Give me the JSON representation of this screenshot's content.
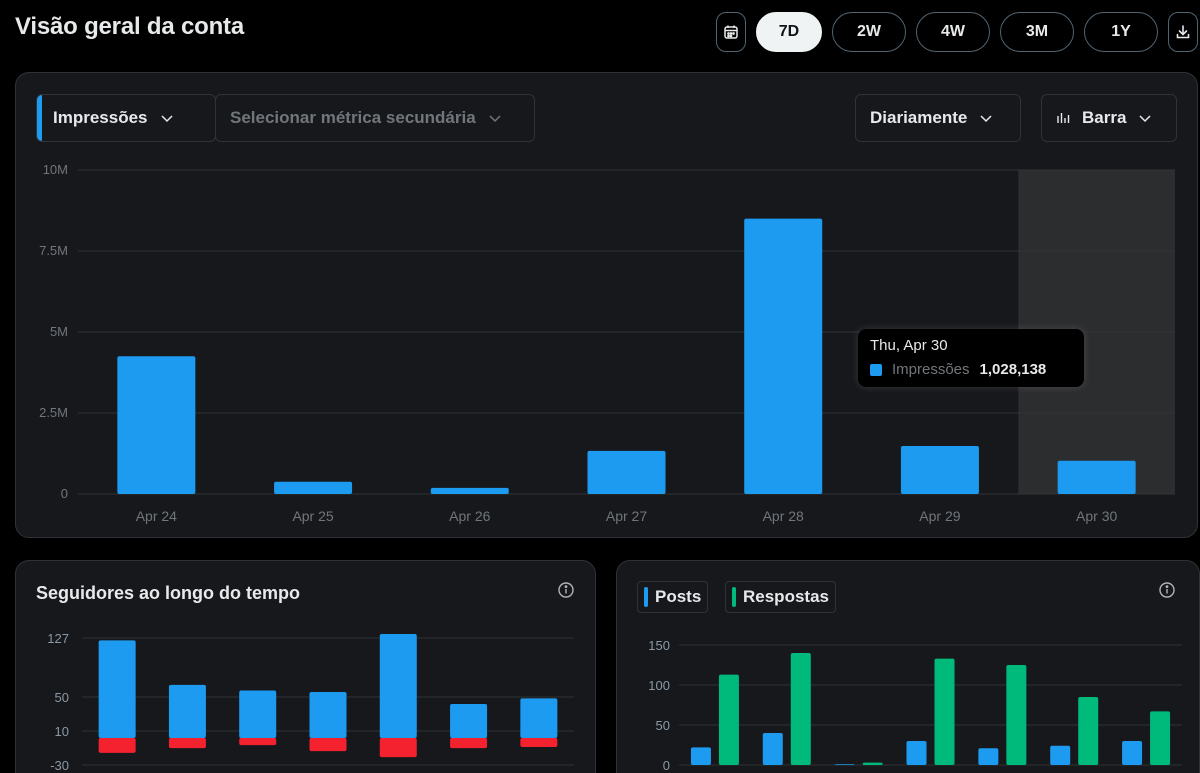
{
  "page": {
    "title": "Visão geral da conta"
  },
  "range": {
    "options": [
      "7D",
      "2W",
      "4W",
      "3M",
      "1Y"
    ],
    "active": "7D"
  },
  "controls": {
    "primary_metric": "Impressões",
    "secondary_metric_placeholder": "Selecionar métrica secundária",
    "interval": "Diariamente",
    "chart_style": "Barra"
  },
  "colors": {
    "blue": "#1d9bf0",
    "green": "#00ba7c",
    "red": "#f4212e",
    "hover_column": "#2c2d2f"
  },
  "tooltip": {
    "date": "Thu, Apr 30",
    "label": "Impressões",
    "value": "1,028,138"
  },
  "followers_card": {
    "title": "Seguidores ao longo do tempo"
  },
  "posts_card": {
    "legend": [
      "Posts",
      "Respostas"
    ]
  },
  "chart_data": [
    {
      "type": "bar",
      "categories": [
        "Apr 24",
        "Apr 25",
        "Apr 26",
        "Apr 27",
        "Apr 28",
        "Apr 29",
        "Apr 30"
      ],
      "series": [
        {
          "name": "Impressões",
          "values": [
            4250000,
            380000,
            190000,
            1330000,
            8500000,
            1480000,
            1028138
          ]
        }
      ],
      "yticks": [
        "0",
        "2.5M",
        "5M",
        "7.5M",
        "10M"
      ],
      "ylim": [
        0,
        10000000
      ],
      "highlighted_category": "Apr 30",
      "grid": true
    },
    {
      "type": "bar",
      "title": "Seguidores ao longo do tempo",
      "series": [
        {
          "values": [
            124,
            68,
            61,
            59,
            132,
            44,
            51
          ]
        },
        {
          "values": [
            -25,
            -17,
            -12,
            -22,
            -32,
            -17,
            -15
          ]
        }
      ],
      "yticks": [
        "-30",
        "10",
        "50",
        "127"
      ],
      "grid": true
    },
    {
      "type": "bar",
      "series": [
        {
          "name": "Posts",
          "values": [
            22,
            40,
            1,
            30,
            21,
            24,
            30
          ]
        },
        {
          "name": "Respostas",
          "values": [
            113,
            140,
            3,
            133,
            125,
            85,
            67
          ]
        }
      ],
      "yticks": [
        "0",
        "50",
        "100",
        "150"
      ],
      "ylim": [
        0,
        150
      ],
      "grid": true
    }
  ]
}
